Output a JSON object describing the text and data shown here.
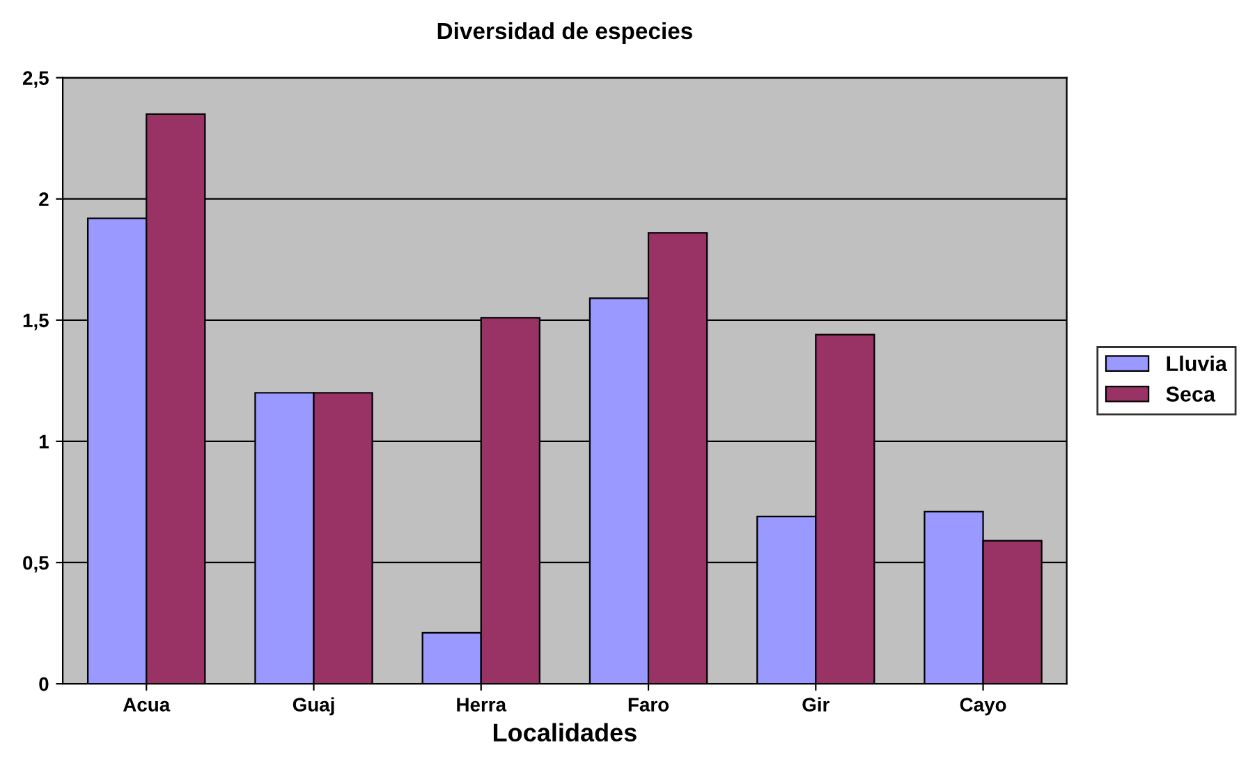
{
  "chart_data": {
    "type": "bar",
    "title": "Diversidad de especies",
    "xlabel": "Localidades",
    "categories": [
      "Acua",
      "Guaj",
      "Herra",
      "Faro",
      "Gir",
      "Cayo"
    ],
    "series": [
      {
        "name": "Lluvia",
        "color": "#9999ff",
        "values": [
          1.92,
          1.2,
          0.21,
          1.59,
          0.69,
          0.71
        ]
      },
      {
        "name": "Seca",
        "color": "#993366",
        "values": [
          2.35,
          1.2,
          1.51,
          1.86,
          1.44,
          0.59
        ]
      }
    ],
    "ylim": [
      0,
      2.5
    ],
    "yticks": [
      {
        "value": 0,
        "label": "0"
      },
      {
        "value": 0.5,
        "label": "0,5"
      },
      {
        "value": 1,
        "label": "1"
      },
      {
        "value": 1.5,
        "label": "1,5"
      },
      {
        "value": 2,
        "label": "2"
      },
      {
        "value": 2.5,
        "label": "2,5"
      }
    ],
    "grid": "y",
    "legend": "right"
  }
}
